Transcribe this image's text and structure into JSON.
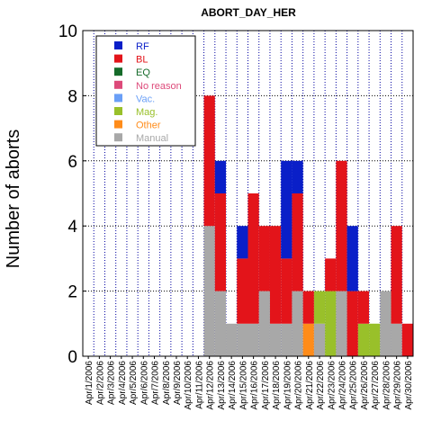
{
  "chart_data": {
    "type": "bar",
    "stacked": true,
    "title": "ABORT_DAY_HER",
    "xlabel": "",
    "ylabel": "Number of aborts",
    "ylim": [
      0,
      10
    ],
    "yticks": [
      "0",
      "2",
      "4",
      "6",
      "8",
      "10"
    ],
    "grid": true,
    "legend_position": "top-left",
    "categories": [
      "Apr/1/2006",
      "Apr/2/2006",
      "Apr/3/2006",
      "Apr/4/2006",
      "Apr/5/2006",
      "Apr/6/2006",
      "Apr/7/2006",
      "Apr/8/2006",
      "Apr/9/2006",
      "Apr/10/2006",
      "Apr/11/2006",
      "Apr/12/2006",
      "Apr/13/2006",
      "Apr/14/2006",
      "Apr/15/2006",
      "Apr/16/2006",
      "Apr/17/2006",
      "Apr/18/2006",
      "Apr/19/2006",
      "Apr/20/2006",
      "Apr/21/2006",
      "Apr/22/2006",
      "Apr/23/2006",
      "Apr/24/2006",
      "Apr/25/2006",
      "Apr/26/2006",
      "Apr/27/2006",
      "Apr/28/2006",
      "Apr/29/2006",
      "Apr/30/2006"
    ],
    "series": [
      {
        "name": "Manual",
        "color": "#a8a8a8",
        "text_color": "#a8a8a8",
        "values": [
          0,
          0,
          0,
          0,
          0,
          0,
          0,
          0,
          0,
          0,
          0,
          4,
          2,
          1,
          1,
          1,
          2,
          1,
          1,
          2,
          0,
          1,
          0,
          2,
          0,
          0,
          0,
          2,
          1,
          0
        ]
      },
      {
        "name": "Other",
        "color": "#ff8c1a",
        "text_color": "#ff8c1a",
        "values": [
          0,
          0,
          0,
          0,
          0,
          0,
          0,
          0,
          0,
          0,
          0,
          0,
          0,
          0,
          0,
          0,
          0,
          0,
          0,
          0,
          1,
          0,
          0,
          0,
          0,
          0,
          0,
          0,
          0,
          0
        ]
      },
      {
        "name": "Mag.",
        "color": "#99c02a",
        "text_color": "#99c02a",
        "values": [
          0,
          0,
          0,
          0,
          0,
          0,
          0,
          0,
          0,
          0,
          0,
          0,
          0,
          0,
          0,
          0,
          0,
          0,
          0,
          0,
          0,
          1,
          2,
          0,
          0,
          1,
          1,
          0,
          0,
          0
        ]
      },
      {
        "name": "Vac.",
        "color": "#6a9ff7",
        "text_color": "#6a9ff7",
        "values": [
          0,
          0,
          0,
          0,
          0,
          0,
          0,
          0,
          0,
          0,
          0,
          0,
          0,
          0,
          0,
          0,
          0,
          0,
          0,
          0,
          0,
          0,
          0,
          0,
          0,
          0,
          0,
          0,
          0,
          0
        ]
      },
      {
        "name": "No reason",
        "color": "#dd4a7a",
        "text_color": "#dd4a7a",
        "values": [
          0,
          0,
          0,
          0,
          0,
          0,
          0,
          0,
          0,
          0,
          0,
          0,
          0,
          0,
          0,
          0,
          0,
          0,
          0,
          0,
          0,
          0,
          0,
          0,
          0,
          0,
          0,
          0,
          0,
          0
        ]
      },
      {
        "name": "EQ",
        "color": "#156b2a",
        "text_color": "#156b2a",
        "values": [
          0,
          0,
          0,
          0,
          0,
          0,
          0,
          0,
          0,
          0,
          0,
          0,
          0,
          0,
          0,
          0,
          0,
          0,
          0,
          0,
          0,
          0,
          0,
          0,
          0,
          0,
          0,
          0,
          0,
          0
        ]
      },
      {
        "name": "BL",
        "color": "#e3141a",
        "text_color": "#e3141a",
        "values": [
          0,
          0,
          0,
          0,
          0,
          0,
          0,
          0,
          0,
          0,
          0,
          4,
          3,
          0,
          2,
          4,
          2,
          3,
          2,
          3,
          1,
          0,
          1,
          4,
          2,
          1,
          0,
          0,
          3,
          1
        ]
      },
      {
        "name": "RF",
        "color": "#0a1fc8",
        "text_color": "#0a1fc8",
        "values": [
          0,
          0,
          0,
          0,
          0,
          0,
          0,
          0,
          0,
          0,
          0,
          0,
          1,
          0,
          1,
          0,
          0,
          0,
          3,
          1,
          0,
          0,
          0,
          0,
          2,
          0,
          0,
          0,
          0,
          0
        ]
      }
    ],
    "legend_order": [
      "RF",
      "BL",
      "EQ",
      "No reason",
      "Vac.",
      "Mag.",
      "Other",
      "Manual"
    ]
  }
}
